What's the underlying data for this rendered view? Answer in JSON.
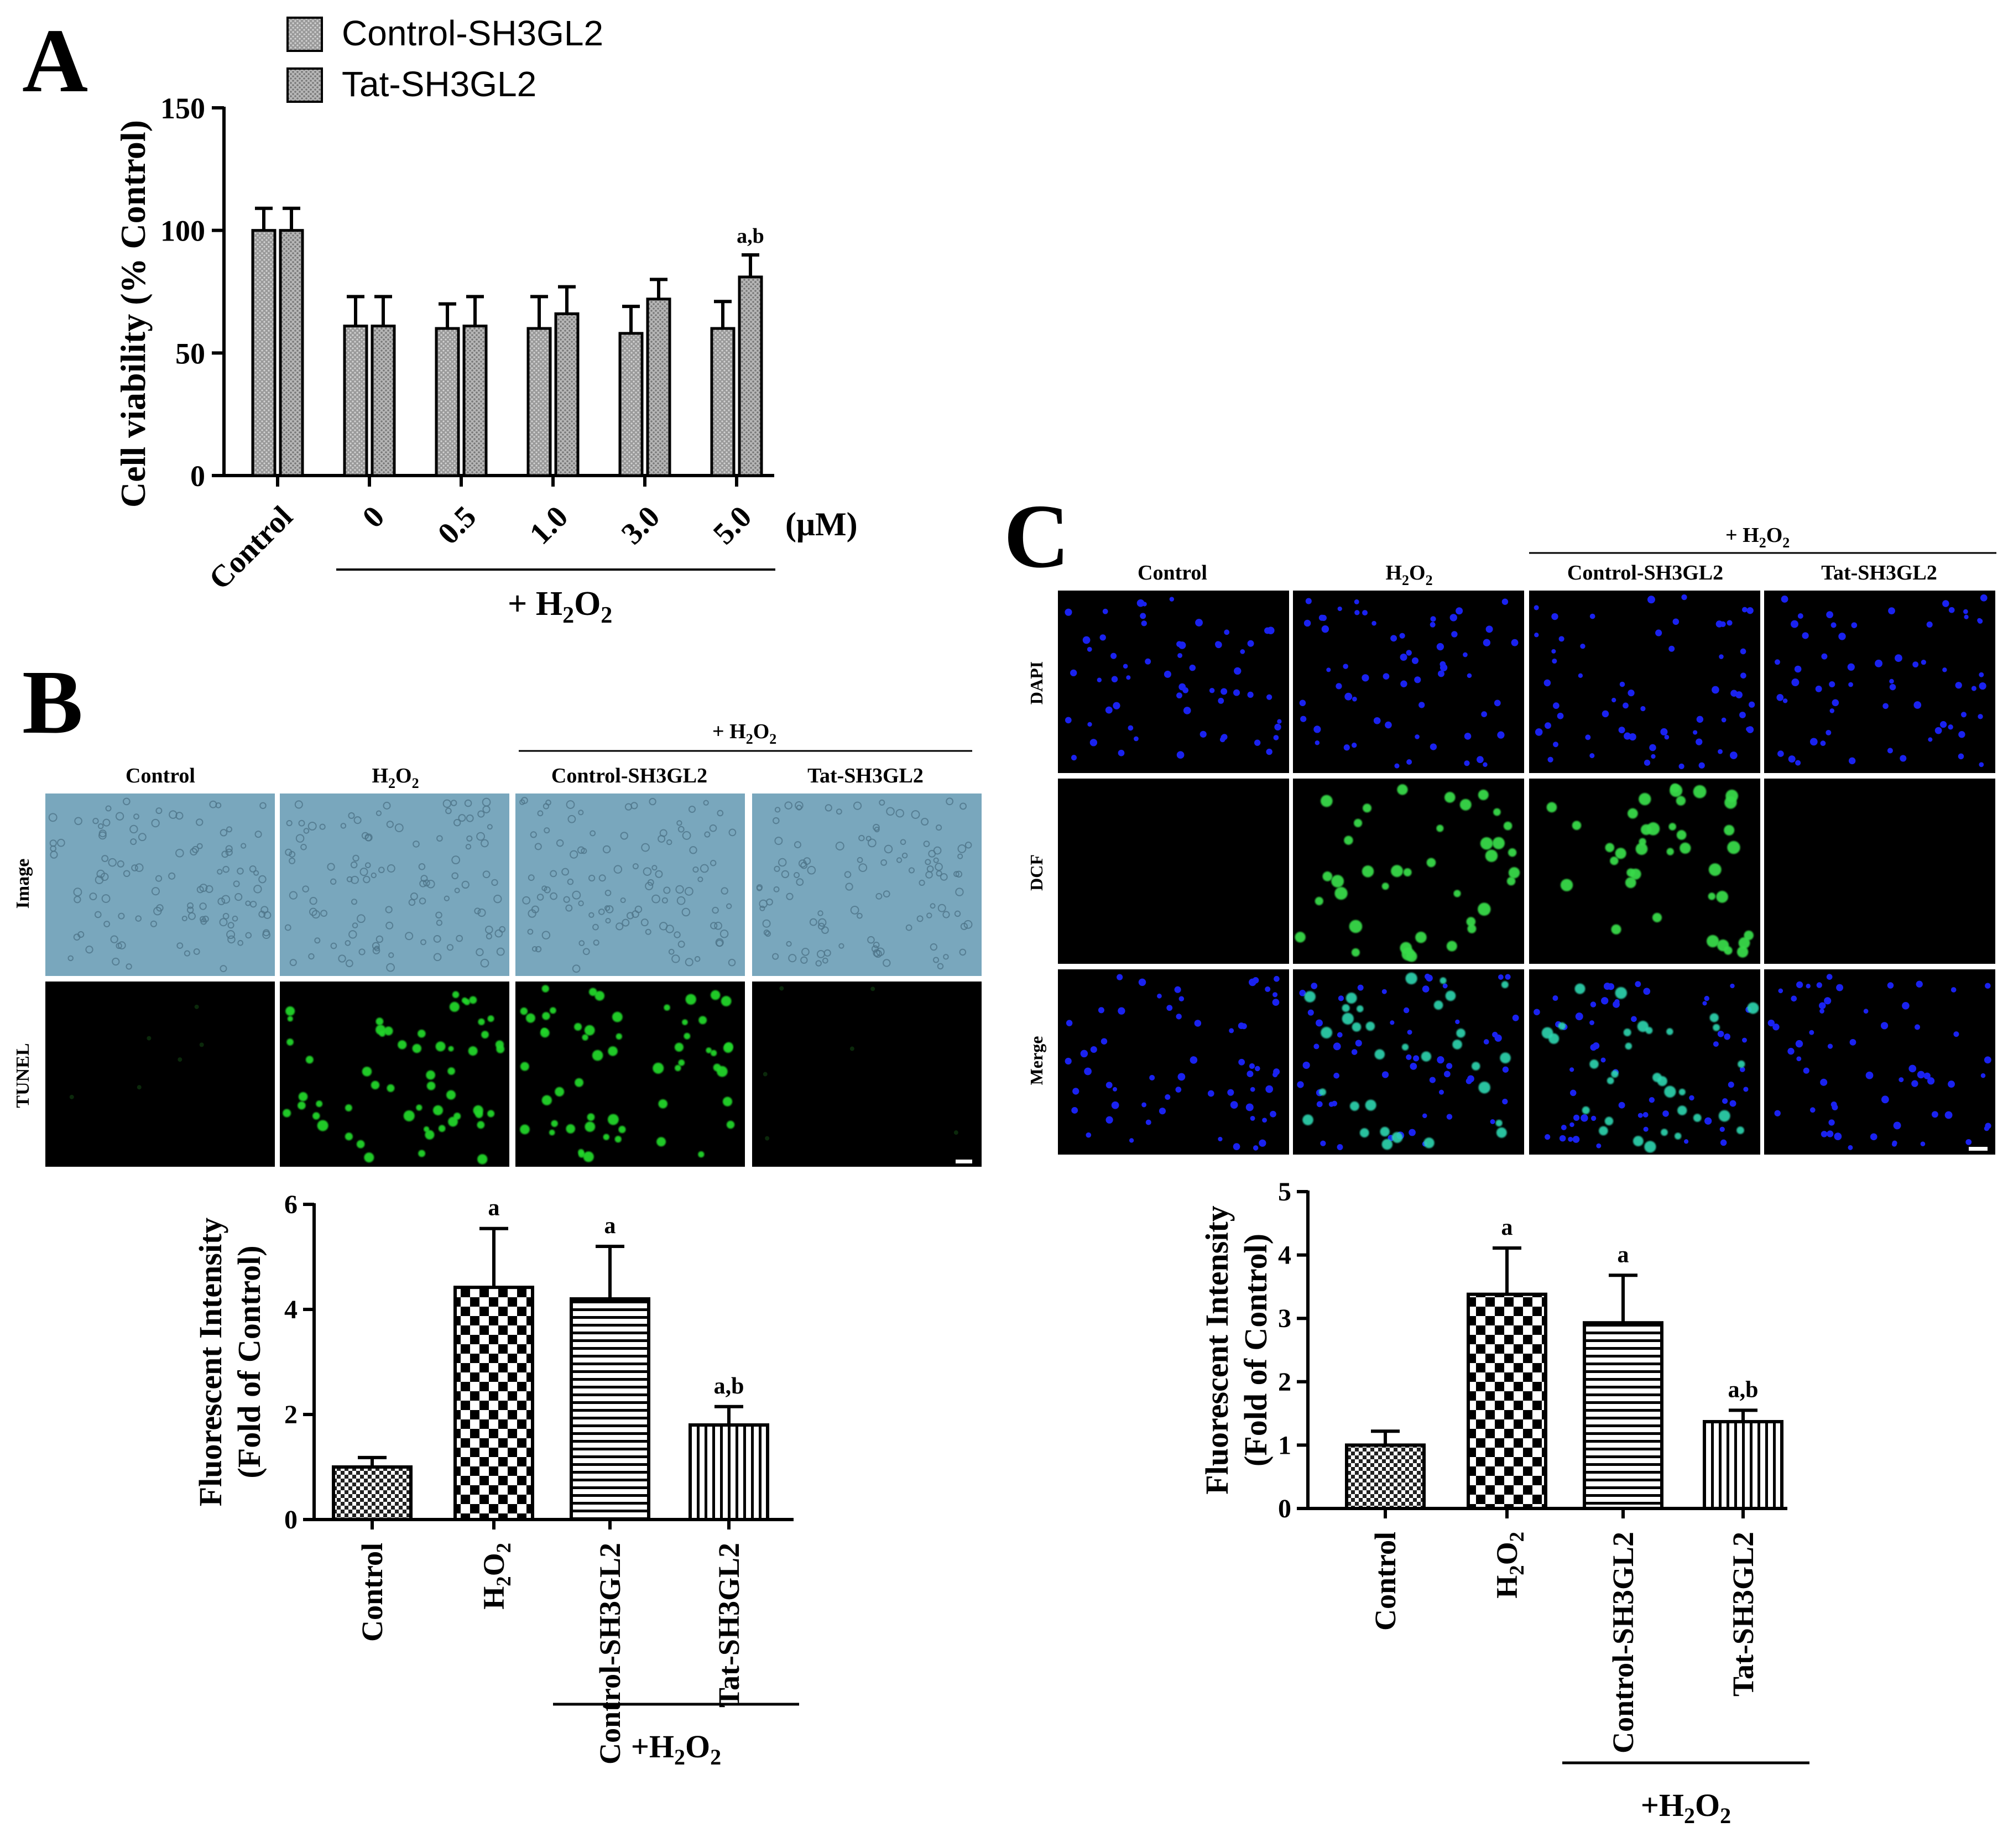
{
  "panel_labels": {
    "a": "A",
    "b": "B",
    "c": "C"
  },
  "sub2": "2",
  "panel_a": {
    "legend": [
      "Control-SH3GL2",
      "Tat-SH3GL2"
    ],
    "unit_label": "(μM)",
    "group_label_prefix": "+ H",
    "group_label_o": "O"
  },
  "panel_b": {
    "columns": [
      "Control",
      "H",
      "Control-SH3GL2",
      "Tat-SH3GL2"
    ],
    "h2o2_header_prefix": "+ H",
    "h2o2_header_o": "O",
    "rows": [
      "Image",
      "TUNEL"
    ]
  },
  "panel_c": {
    "columns": [
      "Control",
      "H",
      "Control-SH3GL2",
      "Tat-SH3GL2"
    ],
    "h2o2_header_prefix": "+ H",
    "h2o2_header_o": "O",
    "rows": [
      "DAPI",
      "DCF",
      "Merge"
    ]
  },
  "chart_data": [
    {
      "id": "A",
      "type": "bar",
      "ylabel": "Cell viability (% Control)",
      "ylim": [
        0,
        150
      ],
      "yticks": [
        0,
        50,
        100,
        150
      ],
      "categories": [
        "Control",
        "0",
        "0.5",
        "1.0",
        "3.0",
        "5.0"
      ],
      "series": [
        {
          "name": "Control-SH3GL2",
          "values": [
            100,
            61,
            60,
            60,
            58,
            60
          ],
          "errors": [
            9,
            12,
            10,
            13,
            11,
            11
          ],
          "color": "#8c8c8c"
        },
        {
          "name": "Tat-SH3GL2",
          "values": [
            100,
            61,
            61,
            66,
            72,
            81
          ],
          "errors": [
            9,
            12,
            12,
            11,
            8,
            9
          ],
          "color": "#a8a8a8"
        }
      ],
      "annotations": [
        {
          "category": "5.0",
          "series": "Tat-SH3GL2",
          "text": "a,b"
        }
      ],
      "group_bracket": "+ H2O2"
    },
    {
      "id": "B",
      "type": "bar",
      "ylabel": [
        "Fluorescent Intensity",
        "(Fold of Control)"
      ],
      "ylim": [
        0,
        6
      ],
      "yticks": [
        0,
        2,
        4,
        6
      ],
      "categories": [
        "Control",
        "H2O2",
        "Control-SH3GL2",
        "Tat-SH3GL2"
      ],
      "values": [
        1.0,
        4.42,
        4.2,
        1.8
      ],
      "errors": [
        0.18,
        1.12,
        1.0,
        0.35
      ],
      "annotations": [
        "",
        "a",
        "a",
        "a,b"
      ],
      "group_bracket": "+H2O2"
    },
    {
      "id": "C",
      "type": "bar",
      "ylabel": [
        "Fluorescent Intensity",
        "(Fold of Control)"
      ],
      "ylim": [
        0,
        5
      ],
      "yticks": [
        0,
        1,
        2,
        3,
        4,
        5
      ],
      "categories": [
        "Control",
        "H2O2",
        "Control-SH3GL2",
        "Tat-SH3GL2"
      ],
      "values": [
        1.0,
        3.38,
        2.93,
        1.37
      ],
      "errors": [
        0.22,
        0.73,
        0.75,
        0.18
      ],
      "annotations": [
        "",
        "a",
        "a",
        "a,b"
      ],
      "group_bracket": "+H2O2"
    }
  ]
}
